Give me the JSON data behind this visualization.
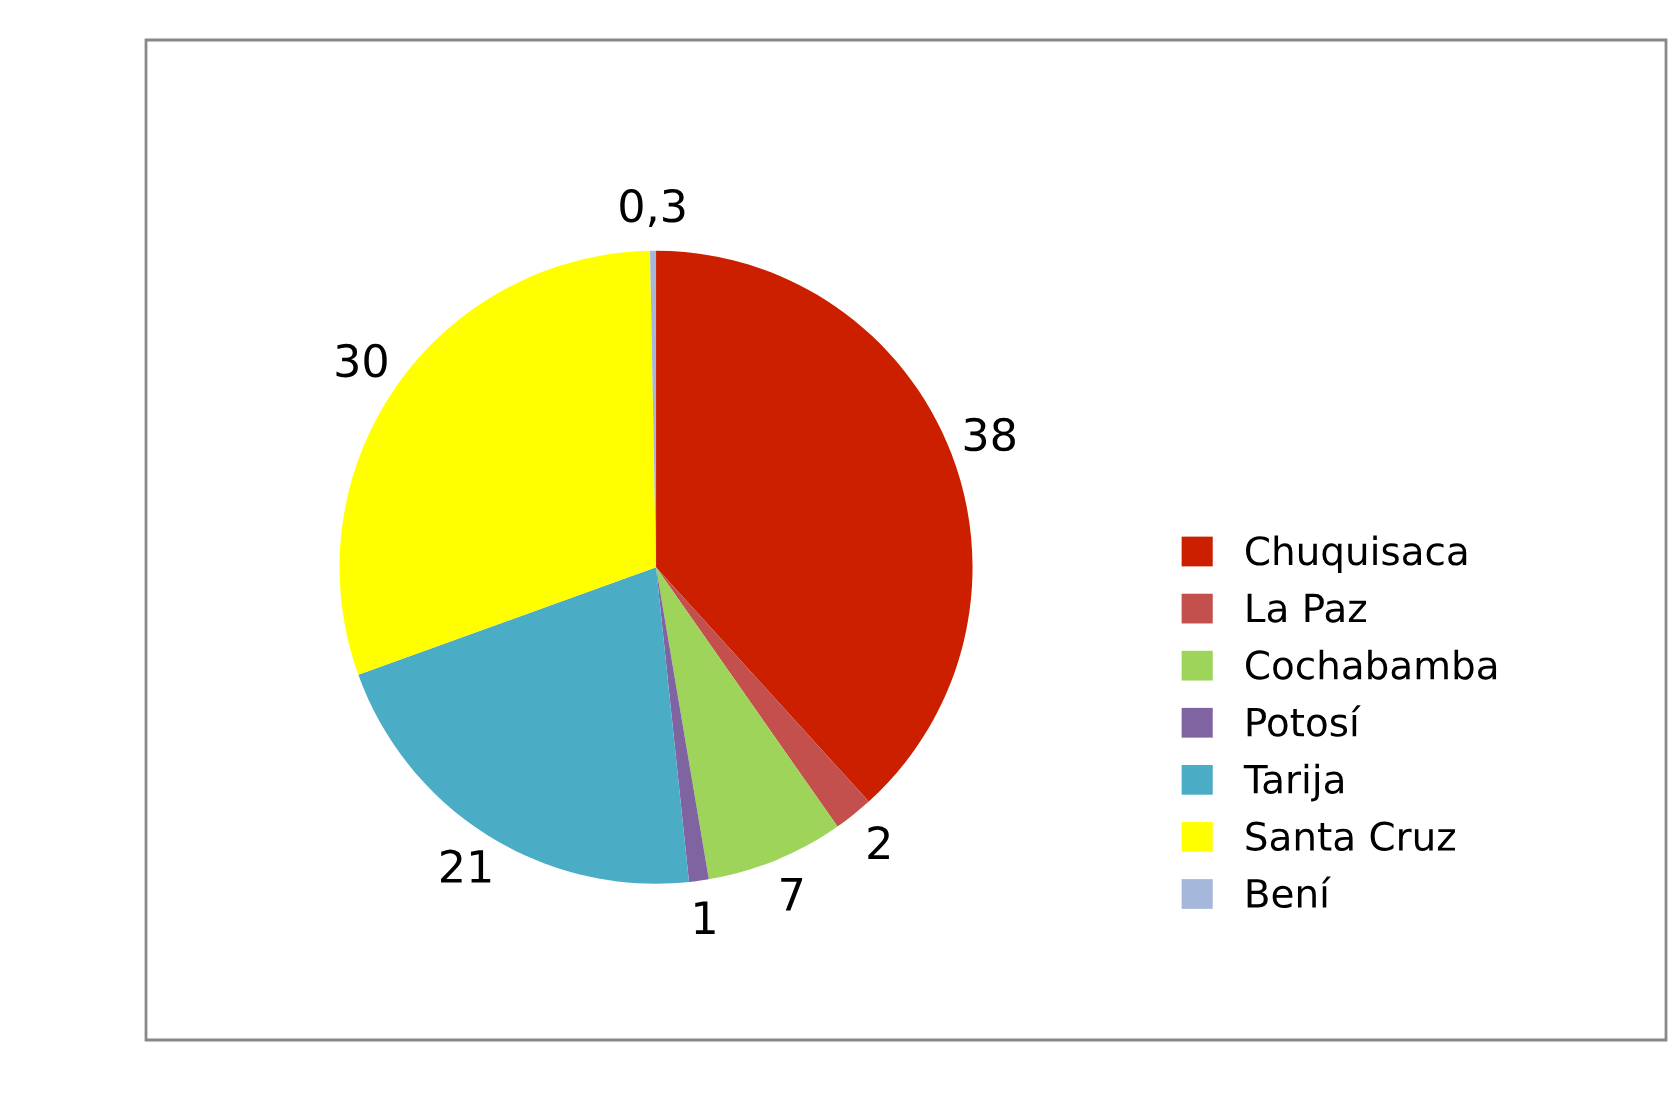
{
  "chart_data": {
    "type": "pie",
    "categories": [
      "Chuquisaca",
      "La Paz",
      "Cochabamba",
      "Potosí",
      "Tarija",
      "Santa Cruz",
      "Bení"
    ],
    "values": [
      38,
      2,
      7,
      1,
      21,
      30,
      0.3
    ],
    "value_labels": [
      "38",
      "2",
      "7",
      "1",
      "21",
      "30",
      "0,3"
    ],
    "colors": [
      "#cc1f00",
      "#c4504d",
      "#9ed45a",
      "#8064a2",
      "#4bacc6",
      "#ffff00",
      "#a5b8dc"
    ],
    "legend": "right"
  }
}
